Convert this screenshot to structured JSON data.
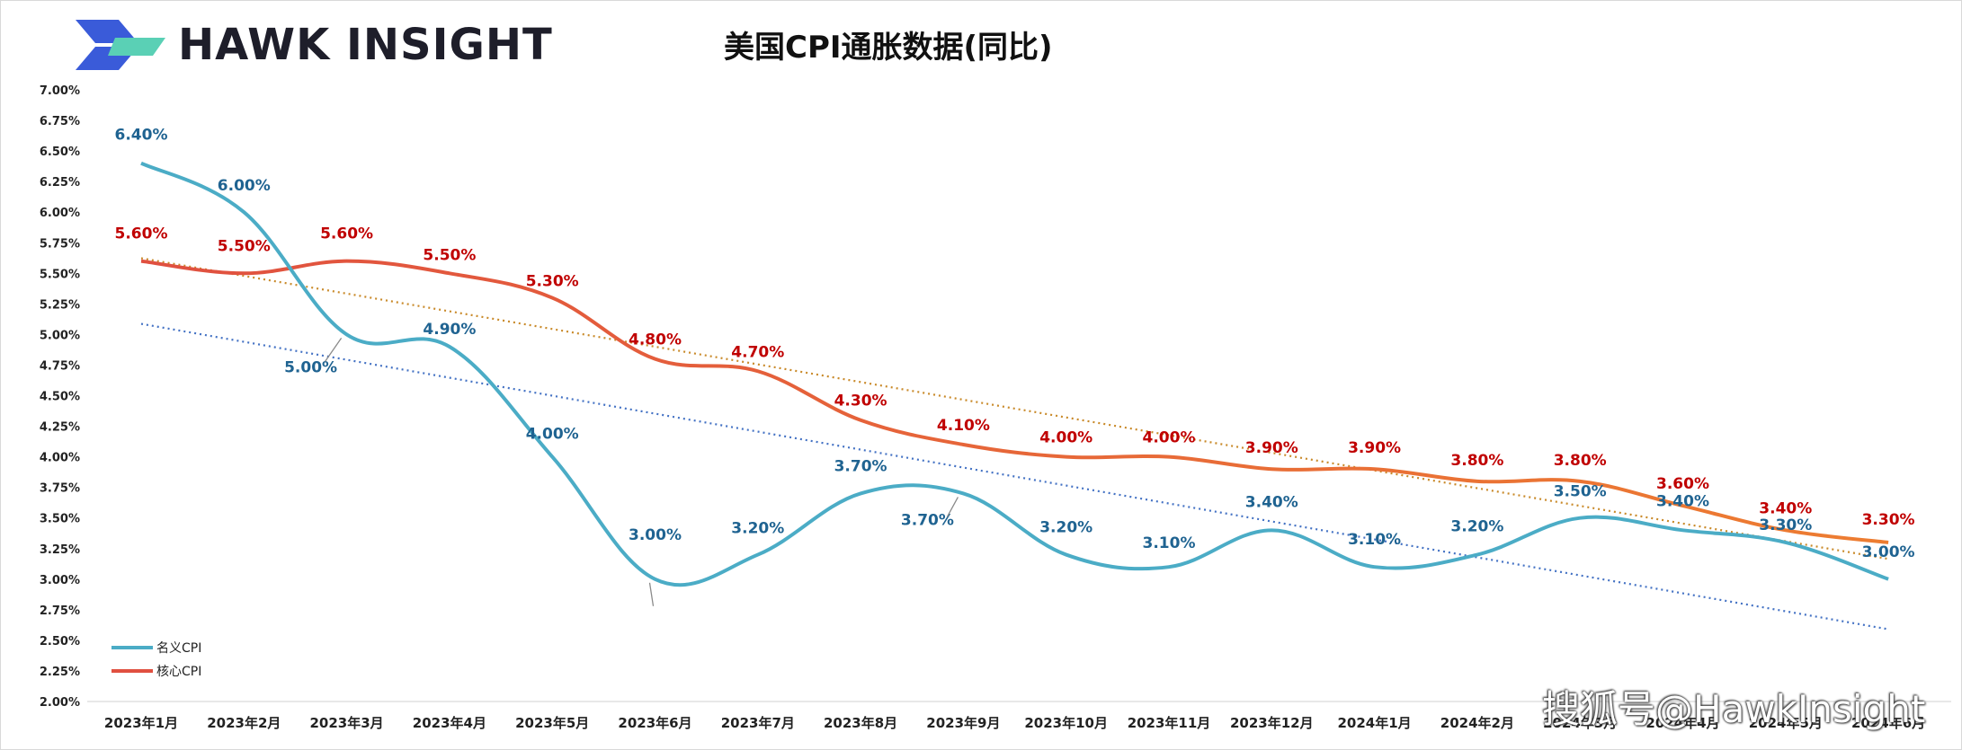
{
  "header": {
    "brand": "HAWK INSIGHT",
    "title": "美国CPI通胀数据(同比)"
  },
  "watermark": "搜狐号@HawkInsight",
  "chart_data": {
    "type": "line",
    "title": "美国CPI通胀数据(同比)",
    "xlabel": "",
    "ylabel": "",
    "categories": [
      "2023年1月",
      "2023年2月",
      "2023年3月",
      "2023年4月",
      "2023年5月",
      "2023年6月",
      "2023年7月",
      "2023年8月",
      "2023年9月",
      "2023年10月",
      "2023年11月",
      "2023年12月",
      "2024年1月",
      "2024年2月",
      "2024年3月",
      "2024年4月",
      "2024年5月",
      "2024年6月"
    ],
    "ylim": [
      2.0,
      7.0
    ],
    "yticks": [
      "2.00%",
      "2.25%",
      "2.50%",
      "2.75%",
      "3.00%",
      "3.25%",
      "3.50%",
      "3.75%",
      "4.00%",
      "4.25%",
      "4.50%",
      "4.75%",
      "5.00%",
      "5.25%",
      "5.50%",
      "5.75%",
      "6.00%",
      "6.25%",
      "6.50%",
      "6.75%",
      "7.00%"
    ],
    "grid": false,
    "legend_position": "bottom-left",
    "series": [
      {
        "name": "名义CPI",
        "color": "#4bacc6",
        "trend_color": "#4472c4",
        "values": [
          6.4,
          6.0,
          5.0,
          4.9,
          4.0,
          3.0,
          3.2,
          3.7,
          3.7,
          3.2,
          3.1,
          3.4,
          3.1,
          3.2,
          3.5,
          3.4,
          3.3,
          3.0
        ],
        "labels": [
          "6.40%",
          "6.00%",
          "5.00%",
          "4.90%",
          "4.00%",
          "3.00%",
          "3.20%",
          "3.70%",
          "3.70%",
          "3.20%",
          "3.10%",
          "3.40%",
          "3.10%",
          "3.20%",
          "3.50%",
          "3.40%",
          "3.30%",
          "3.00%"
        ],
        "label_color": "#1f6391",
        "trendline": "linear"
      },
      {
        "name": "核心CPI",
        "color": "#e05040",
        "color_end": "#ed7d31",
        "trend_color": "#c98a2a",
        "values": [
          5.6,
          5.5,
          5.6,
          5.5,
          5.3,
          4.8,
          4.7,
          4.3,
          4.1,
          4.0,
          4.0,
          3.9,
          3.9,
          3.8,
          3.8,
          3.6,
          3.4,
          3.3
        ],
        "labels": [
          "5.60%",
          "5.50%",
          "5.60%",
          "5.50%",
          "5.30%",
          "4.80%",
          "4.70%",
          "4.30%",
          "4.10%",
          "4.00%",
          "4.00%",
          "3.90%",
          "3.90%",
          "3.80%",
          "3.80%",
          "3.60%",
          "3.40%",
          "3.30%"
        ],
        "label_color": "#c00000",
        "trendline": "linear"
      }
    ]
  }
}
